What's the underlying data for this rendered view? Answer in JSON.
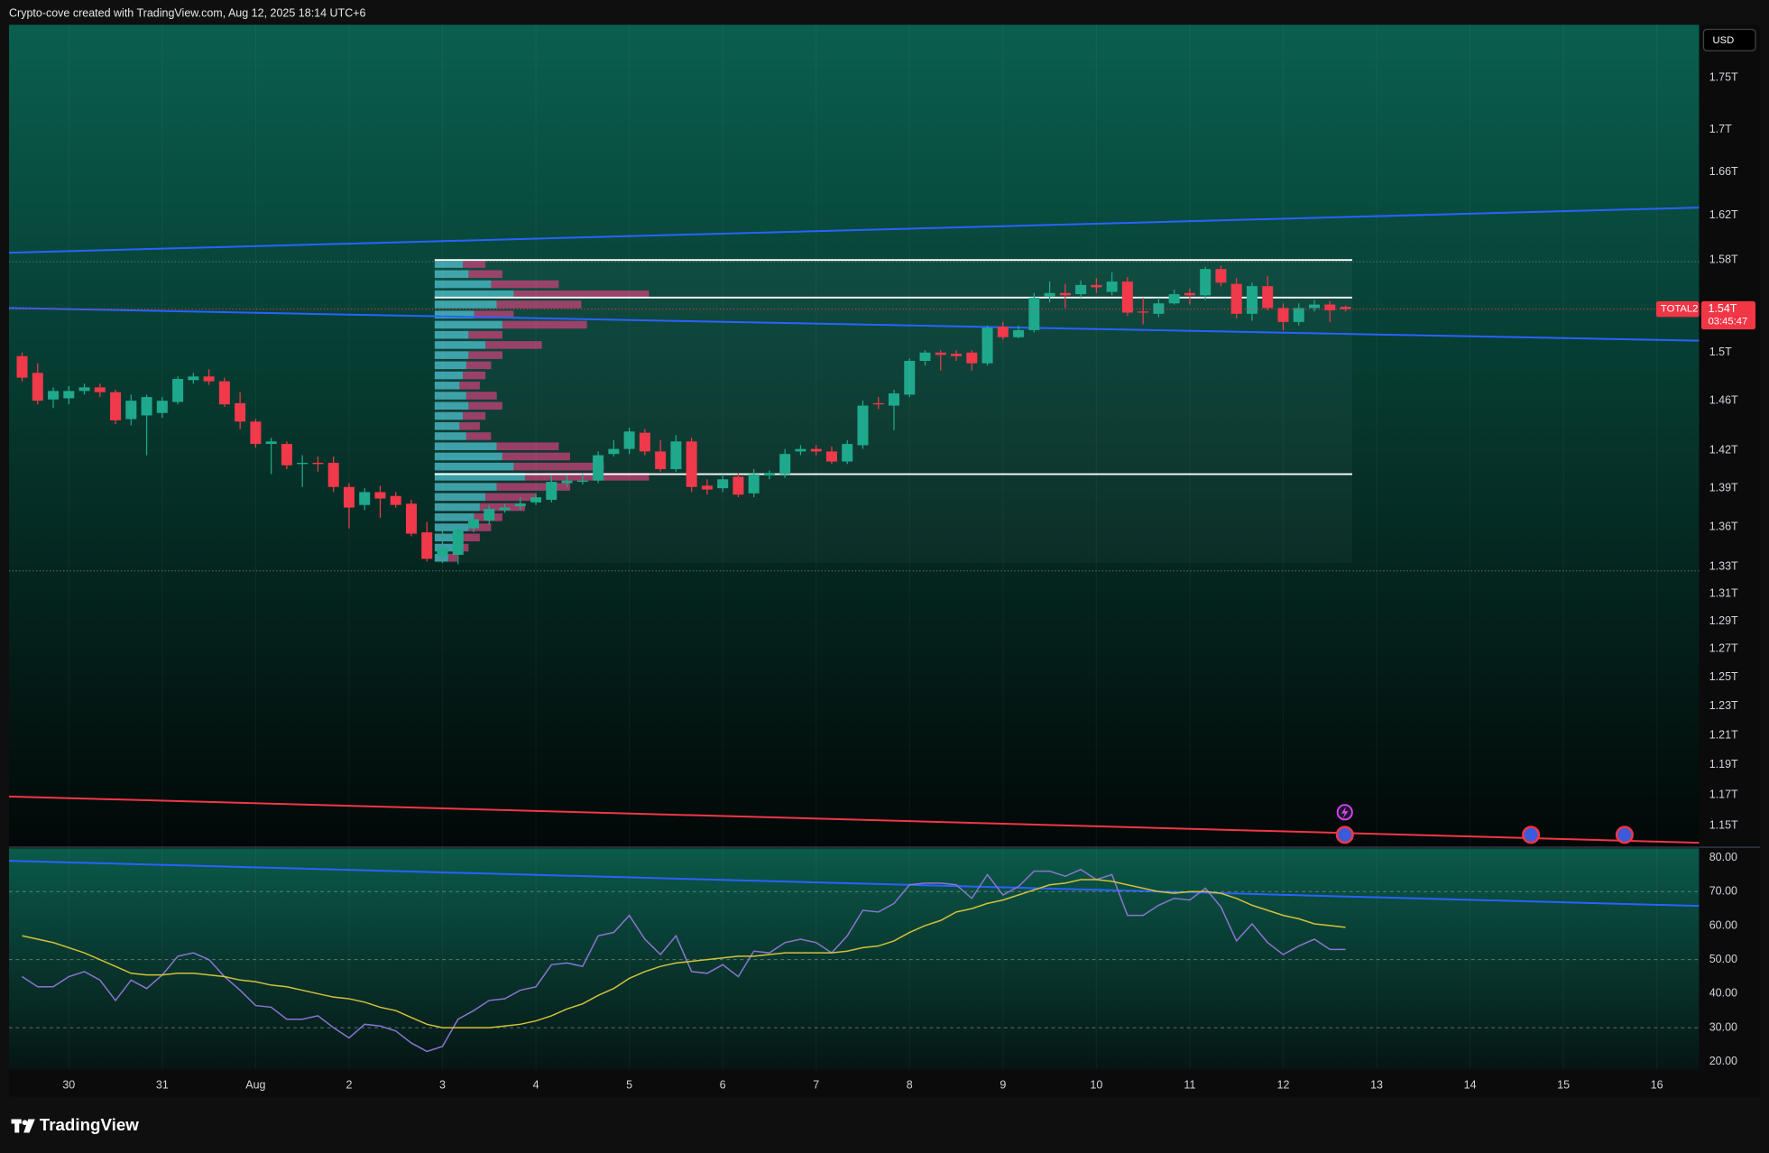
{
  "chart_data": {
    "type": "candlestick",
    "title": "Crypto-cove created with TradingView.com, Aug 12, 2025 18:14 UTC+6",
    "currency": "USD",
    "log": true,
    "up_color": "#1fa98c",
    "down_color": "#f0394a",
    "categories": [
      null,
      null,
      null,
      "30",
      null,
      null,
      null,
      null,
      null,
      "31",
      null,
      null,
      null,
      null,
      null,
      "Aug",
      null,
      null,
      null,
      null,
      null,
      "2",
      null,
      null,
      null,
      null,
      null,
      "3",
      null,
      null,
      null,
      null,
      null,
      "4",
      null,
      null,
      null,
      null,
      null,
      "5",
      null,
      null,
      null,
      null,
      null,
      "6",
      null,
      null,
      null,
      null,
      null,
      "7",
      null,
      null,
      null,
      null,
      null,
      "8",
      null,
      null,
      null,
      null,
      null,
      "9",
      null,
      null,
      null,
      null,
      null,
      "10",
      null,
      null,
      null,
      null,
      null,
      "11",
      null,
      null,
      null,
      null,
      null,
      "12",
      null,
      null,
      null,
      null,
      null,
      "13",
      null,
      null,
      null,
      null,
      null,
      "14",
      null,
      null,
      null,
      null,
      null,
      "15",
      null,
      null,
      null,
      null,
      null,
      "16",
      null,
      null
    ],
    "open": [
      1.497,
      1.483,
      1.461,
      1.462,
      1.468,
      1.471,
      1.467,
      1.445,
      1.448,
      1.45,
      1.459,
      1.477,
      1.48,
      1.476,
      1.458,
      1.443,
      1.425,
      1.425,
      1.409,
      1.41,
      1.41,
      1.391,
      1.377,
      1.387,
      1.384,
      1.378,
      1.356,
      1.338,
      1.339,
      1.359,
      1.365,
      1.373,
      1.376,
      1.379,
      1.381,
      1.394,
      1.395,
      1.396,
      1.417,
      1.421,
      1.434,
      1.419,
      1.405,
      1.427,
      1.392,
      1.39,
      1.399,
      1.386,
      1.4,
      1.401,
      1.419,
      1.421,
      1.419,
      1.411,
      1.424,
      1.458,
      1.456,
      1.465,
      1.493,
      1.5,
      1.499,
      1.5,
      1.491,
      1.522,
      1.513,
      1.519,
      1.548,
      1.551,
      1.55,
      1.558,
      1.552,
      1.561,
      1.535,
      1.533,
      1.542,
      1.551,
      1.549,
      1.572,
      1.559,
      1.533,
      1.557,
      1.538,
      1.526,
      1.538,
      1.541,
      1.539,
      null,
      null,
      null,
      null,
      null,
      null,
      null,
      null,
      null,
      null,
      null,
      null,
      null,
      null,
      null,
      null,
      null,
      null,
      null,
      null,
      null,
      null
    ],
    "high": [
      1.5,
      1.491,
      1.471,
      1.472,
      1.474,
      1.474,
      1.469,
      1.465,
      1.465,
      1.463,
      1.48,
      1.483,
      1.486,
      1.479,
      1.467,
      1.445,
      1.43,
      1.427,
      1.416,
      1.415,
      1.415,
      1.394,
      1.39,
      1.392,
      1.387,
      1.381,
      1.364,
      1.359,
      1.36,
      1.37,
      1.377,
      1.378,
      1.383,
      1.386,
      1.4,
      1.4,
      1.401,
      1.419,
      1.428,
      1.438,
      1.437,
      1.428,
      1.432,
      1.43,
      1.397,
      1.401,
      1.402,
      1.405,
      1.404,
      1.421,
      1.424,
      1.424,
      1.423,
      1.428,
      1.46,
      1.463,
      1.469,
      1.495,
      1.502,
      1.502,
      1.502,
      1.502,
      1.523,
      1.526,
      1.523,
      1.551,
      1.561,
      1.559,
      1.562,
      1.564,
      1.569,
      1.565,
      1.547,
      1.547,
      1.554,
      1.555,
      1.574,
      1.575,
      1.564,
      1.56,
      1.566,
      1.542,
      1.542,
      1.545,
      1.544,
      1.54,
      null,
      null,
      null,
      null,
      null,
      null,
      null,
      null,
      null,
      null,
      null,
      null,
      null,
      null,
      null,
      null,
      null,
      null,
      null,
      null,
      null,
      null
    ],
    "low": [
      1.476,
      1.457,
      1.454,
      1.457,
      1.465,
      1.463,
      1.441,
      1.44,
      1.416,
      1.446,
      1.457,
      1.474,
      1.473,
      1.455,
      1.437,
      1.422,
      1.401,
      1.405,
      1.391,
      1.403,
      1.387,
      1.359,
      1.373,
      1.367,
      1.375,
      1.353,
      1.334,
      1.333,
      1.332,
      1.356,
      1.362,
      1.371,
      1.373,
      1.377,
      1.379,
      1.391,
      1.393,
      1.394,
      1.415,
      1.417,
      1.416,
      1.403,
      1.403,
      1.387,
      1.385,
      1.387,
      1.383,
      1.383,
      1.397,
      1.398,
      1.416,
      1.416,
      1.409,
      1.409,
      1.421,
      1.453,
      1.436,
      1.463,
      1.489,
      1.485,
      1.493,
      1.485,
      1.489,
      1.511,
      1.512,
      1.517,
      1.543,
      1.538,
      1.547,
      1.551,
      1.549,
      1.531,
      1.524,
      1.53,
      1.541,
      1.541,
      1.545,
      1.557,
      1.529,
      1.527,
      1.536,
      1.519,
      1.523,
      1.535,
      1.526,
      1.535,
      null,
      null,
      null,
      null,
      null,
      null,
      null,
      null,
      null,
      null,
      null,
      null,
      null,
      null,
      null,
      null,
      null,
      null,
      null,
      null,
      null,
      null
    ],
    "close": [
      1.479,
      1.46,
      1.468,
      1.468,
      1.471,
      1.467,
      1.444,
      1.46,
      1.463,
      1.46,
      1.478,
      1.48,
      1.476,
      1.457,
      1.443,
      1.425,
      1.427,
      1.408,
      1.41,
      1.409,
      1.391,
      1.375,
      1.387,
      1.382,
      1.377,
      1.355,
      1.336,
      1.344,
      1.358,
      1.366,
      1.374,
      1.375,
      1.378,
      1.383,
      1.395,
      1.396,
      1.396,
      1.416,
      1.421,
      1.435,
      1.419,
      1.405,
      1.427,
      1.391,
      1.389,
      1.397,
      1.385,
      1.401,
      1.402,
      1.417,
      1.421,
      1.419,
      1.411,
      1.425,
      1.456,
      1.457,
      1.466,
      1.493,
      1.5,
      1.498,
      1.497,
      1.491,
      1.521,
      1.513,
      1.519,
      1.547,
      1.551,
      1.549,
      1.558,
      1.556,
      1.561,
      1.534,
      1.534,
      1.542,
      1.55,
      1.549,
      1.572,
      1.56,
      1.533,
      1.557,
      1.538,
      1.526,
      1.538,
      1.541,
      1.536,
      1.537,
      null,
      null,
      null,
      null,
      null,
      null,
      null,
      null,
      null,
      null,
      null,
      null,
      null,
      null,
      null,
      null,
      null,
      null,
      null,
      null,
      null,
      null
    ],
    "ylim": [
      1.137,
      1.803
    ],
    "yticks": [
      {
        "value": 1.75,
        "label": "1.75T"
      },
      {
        "value": 1.7,
        "label": "1.7T"
      },
      {
        "value": 1.66,
        "label": "1.66T"
      },
      {
        "value": 1.62,
        "label": "1.62T"
      },
      {
        "value": 1.58,
        "label": "1.58T"
      },
      {
        "value": 1.5,
        "label": "1.5T"
      },
      {
        "value": 1.46,
        "label": "1.46T"
      },
      {
        "value": 1.42,
        "label": "1.42T"
      },
      {
        "value": 1.39,
        "label": "1.39T"
      },
      {
        "value": 1.36,
        "label": "1.36T"
      },
      {
        "value": 1.33,
        "label": "1.33T"
      },
      {
        "value": 1.31,
        "label": "1.31T"
      },
      {
        "value": 1.29,
        "label": "1.29T"
      },
      {
        "value": 1.27,
        "label": "1.27T"
      },
      {
        "value": 1.25,
        "label": "1.25T"
      },
      {
        "value": 1.23,
        "label": "1.23T"
      },
      {
        "value": 1.21,
        "label": "1.21T"
      },
      {
        "value": 1.19,
        "label": "1.19T"
      },
      {
        "value": 1.17,
        "label": "1.17T"
      },
      {
        "value": 1.15,
        "label": "1.15T"
      }
    ],
    "last_price": {
      "symbol": "TOTAL2",
      "value": 1.537,
      "label": "1.54T",
      "countdown": "03:45:47"
    },
    "volume_profile": {
      "start": 27,
      "range": [
        1.333,
        1.581
      ],
      "vah": 1.58,
      "poc": 1.547,
      "val": 1.401,
      "up_color": "#4fc3d0",
      "down_color": "#c8417a",
      "up": [
        25,
        30,
        50,
        70,
        55,
        35,
        60,
        30,
        45,
        30,
        28,
        25,
        22,
        28,
        30,
        25,
        22,
        28,
        55,
        60,
        70,
        80,
        55,
        45,
        40,
        35,
        30,
        25,
        18,
        12
      ],
      "down": [
        20,
        30,
        60,
        120,
        75,
        35,
        75,
        30,
        50,
        30,
        22,
        20,
        18,
        27,
        30,
        20,
        18,
        22,
        55,
        60,
        80,
        110,
        65,
        45,
        40,
        25,
        20,
        15,
        12,
        8
      ]
    },
    "rsi": {
      "type": "line",
      "ylim": [
        17.7,
        82.7
      ],
      "yticks": [
        {
          "value": 80,
          "label": "80.00"
        },
        {
          "value": 70,
          "label": "70.00"
        },
        {
          "value": 60,
          "label": "60.00"
        },
        {
          "value": 50,
          "label": "50.00"
        },
        {
          "value": 40,
          "label": "40.00"
        },
        {
          "value": 30,
          "label": "30.00"
        },
        {
          "value": 20,
          "label": "20.00"
        }
      ],
      "levels": [
        70,
        50,
        30
      ],
      "series": [
        {
          "color": "#8a74d0",
          "values": [
            45,
            42,
            42,
            45,
            46.5,
            44,
            38,
            44,
            41.5,
            45.5,
            51,
            52,
            50,
            45,
            41,
            36.5,
            36,
            32.5,
            32.5,
            33.5,
            30,
            27,
            31,
            30.5,
            29,
            25.5,
            23,
            24.5,
            32.5,
            35,
            38,
            38.5,
            41,
            42,
            48.5,
            49,
            48,
            57,
            58,
            63,
            56,
            51.5,
            57,
            46.5,
            46,
            48.5,
            45,
            52.5,
            52,
            55,
            56,
            55,
            52,
            57,
            64.5,
            64,
            66.5,
            72,
            72.5,
            72.5,
            72,
            68,
            75,
            69,
            71.5,
            76,
            76,
            74.5,
            76.5,
            73.5,
            75,
            63,
            63,
            66,
            68,
            67.5,
            71,
            65.5,
            55.5,
            60.5,
            55,
            51.5,
            54,
            56,
            53,
            53,
            null,
            null,
            null,
            null,
            null,
            null,
            null,
            null,
            null,
            null,
            null,
            null,
            null,
            null,
            null,
            null,
            null,
            null,
            null,
            null,
            null,
            null
          ]
        },
        {
          "color": "#d2c13a",
          "values": [
            57,
            56,
            55,
            53.5,
            52,
            50,
            48,
            46,
            45.5,
            45.5,
            46,
            46,
            45.5,
            45,
            44,
            43.5,
            42.5,
            42,
            41,
            40,
            39,
            38.5,
            37.5,
            36,
            35,
            33,
            31,
            30,
            30,
            30,
            30,
            30.5,
            31,
            32,
            33.5,
            35.5,
            37,
            39.5,
            41.5,
            44.5,
            46.5,
            48,
            49,
            49.5,
            50,
            50.5,
            51,
            51,
            51.5,
            52,
            52,
            52,
            52,
            52.5,
            53.5,
            54,
            55.5,
            58,
            60,
            61.5,
            64,
            65,
            66.5,
            67.5,
            69,
            70.5,
            72,
            72.5,
            73.5,
            73.5,
            73,
            72,
            71,
            70,
            69.5,
            70,
            70,
            69.5,
            68,
            66,
            64.5,
            63,
            62,
            60.5,
            60,
            59.5,
            null,
            null,
            null,
            null,
            null,
            null,
            null,
            null,
            null,
            null,
            null,
            null,
            null,
            null,
            null,
            null,
            null,
            null,
            null,
            null,
            null,
            null
          ]
        }
      ]
    }
  },
  "footer": {
    "brand": "TradingView"
  }
}
